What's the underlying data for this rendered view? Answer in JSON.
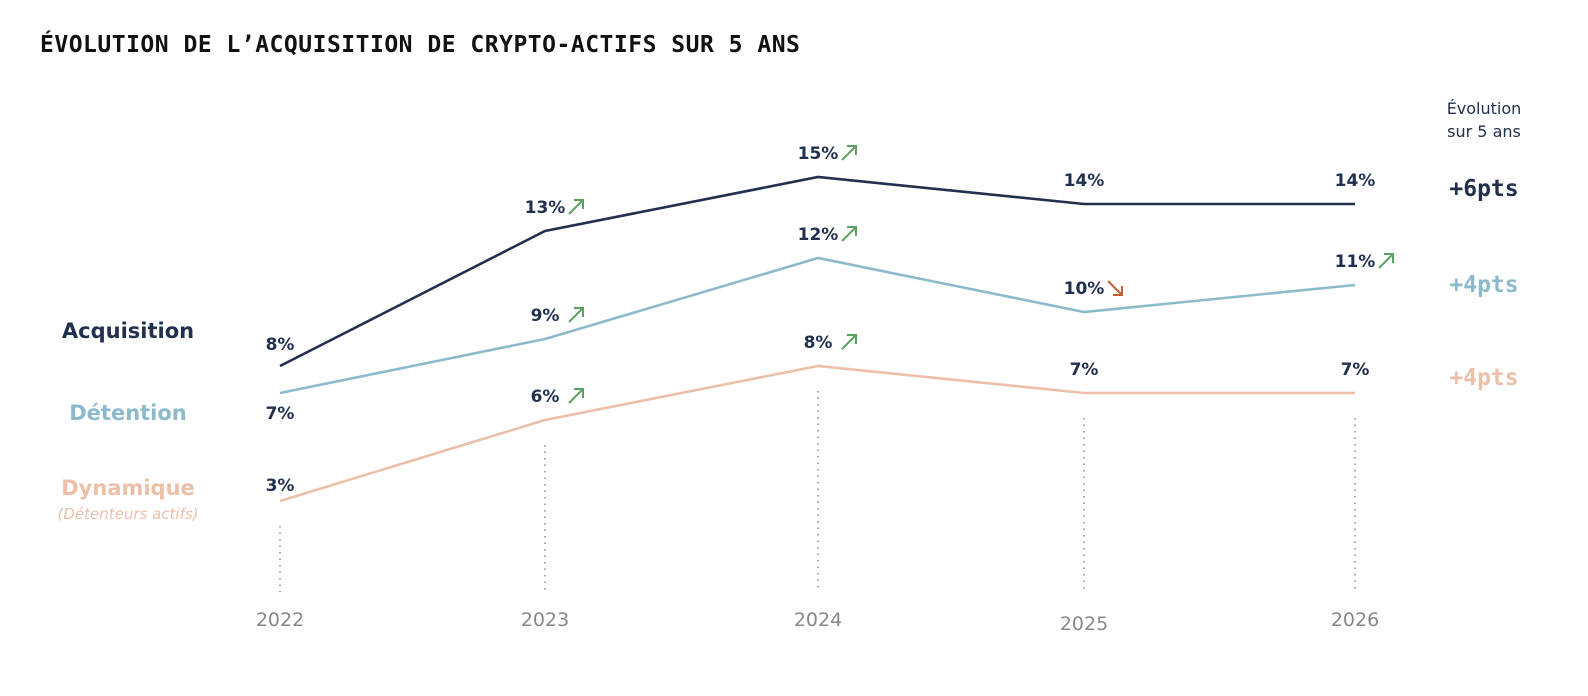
{
  "chart_data": {
    "type": "line",
    "title": "ÉVOLUTION DE L’ACQUISITION DE CRYPTO-ACTIFS SUR 5 ANS",
    "categories": [
      "2022",
      "2023",
      "2024",
      "2025",
      "2026"
    ],
    "unit": "%",
    "grid": false,
    "legend_placement": "left",
    "evolution_header": [
      "Évolution",
      "sur 5 ans"
    ],
    "series": [
      {
        "name": "Acquisition",
        "subtitle": "",
        "color": "#22304f",
        "values": [
          8,
          13,
          15,
          14,
          14
        ],
        "labels": [
          "8%",
          "13%",
          "15%",
          "14%",
          "14%"
        ],
        "trend": [
          null,
          "up",
          "up",
          null,
          null
        ],
        "evolution": "+6pts"
      },
      {
        "name": "Détention",
        "subtitle": "",
        "color": "#8dbacb",
        "values": [
          7,
          9,
          12,
          10,
          11
        ],
        "labels": [
          "7%",
          "9%",
          "12%",
          "10%",
          "11%"
        ],
        "trend": [
          null,
          "up",
          "up",
          "down",
          "up"
        ],
        "evolution": "+4pts"
      },
      {
        "name": "Dynamique",
        "subtitle": "(Détenteurs actifs)",
        "color": "#ecbfa8",
        "values": [
          3,
          6,
          8,
          7,
          7
        ],
        "labels": [
          "3%",
          "6%",
          "8%",
          "7%",
          "7%"
        ],
        "trend": [
          null,
          "up",
          "up",
          null,
          null
        ],
        "evolution": "+4pts"
      }
    ],
    "trend_colors": {
      "up": "#5aa25f",
      "down": "#c8602c"
    }
  }
}
